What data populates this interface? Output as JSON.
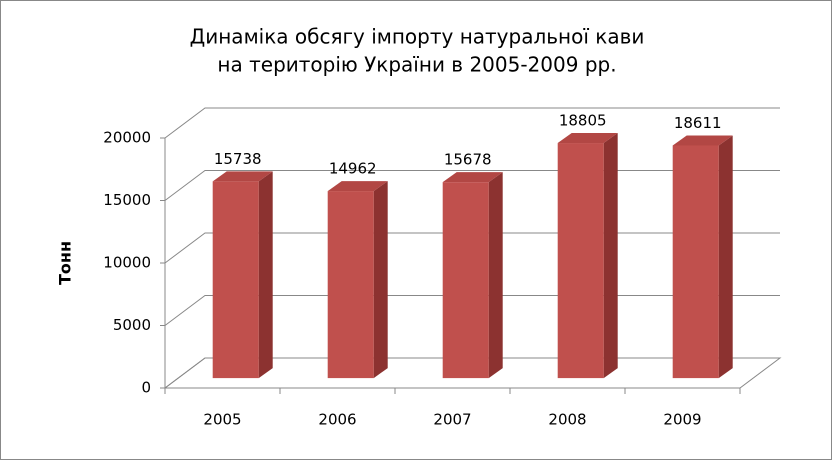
{
  "chart_data": {
    "type": "bar3d",
    "title": [
      "Динаміка обсягу імпорту натуральної кави",
      "на територію України в 2005-2009 рр."
    ],
    "y_label": "Тонн",
    "categories": [
      "2005",
      "2006",
      "2007",
      "2008",
      "2009"
    ],
    "values": [
      15738,
      14962,
      15678,
      18805,
      18611
    ],
    "color": "#c0504d",
    "ylim": [
      0,
      20000
    ],
    "yticks": [
      0,
      5000,
      10000,
      15000,
      20000
    ],
    "grid": true
  }
}
